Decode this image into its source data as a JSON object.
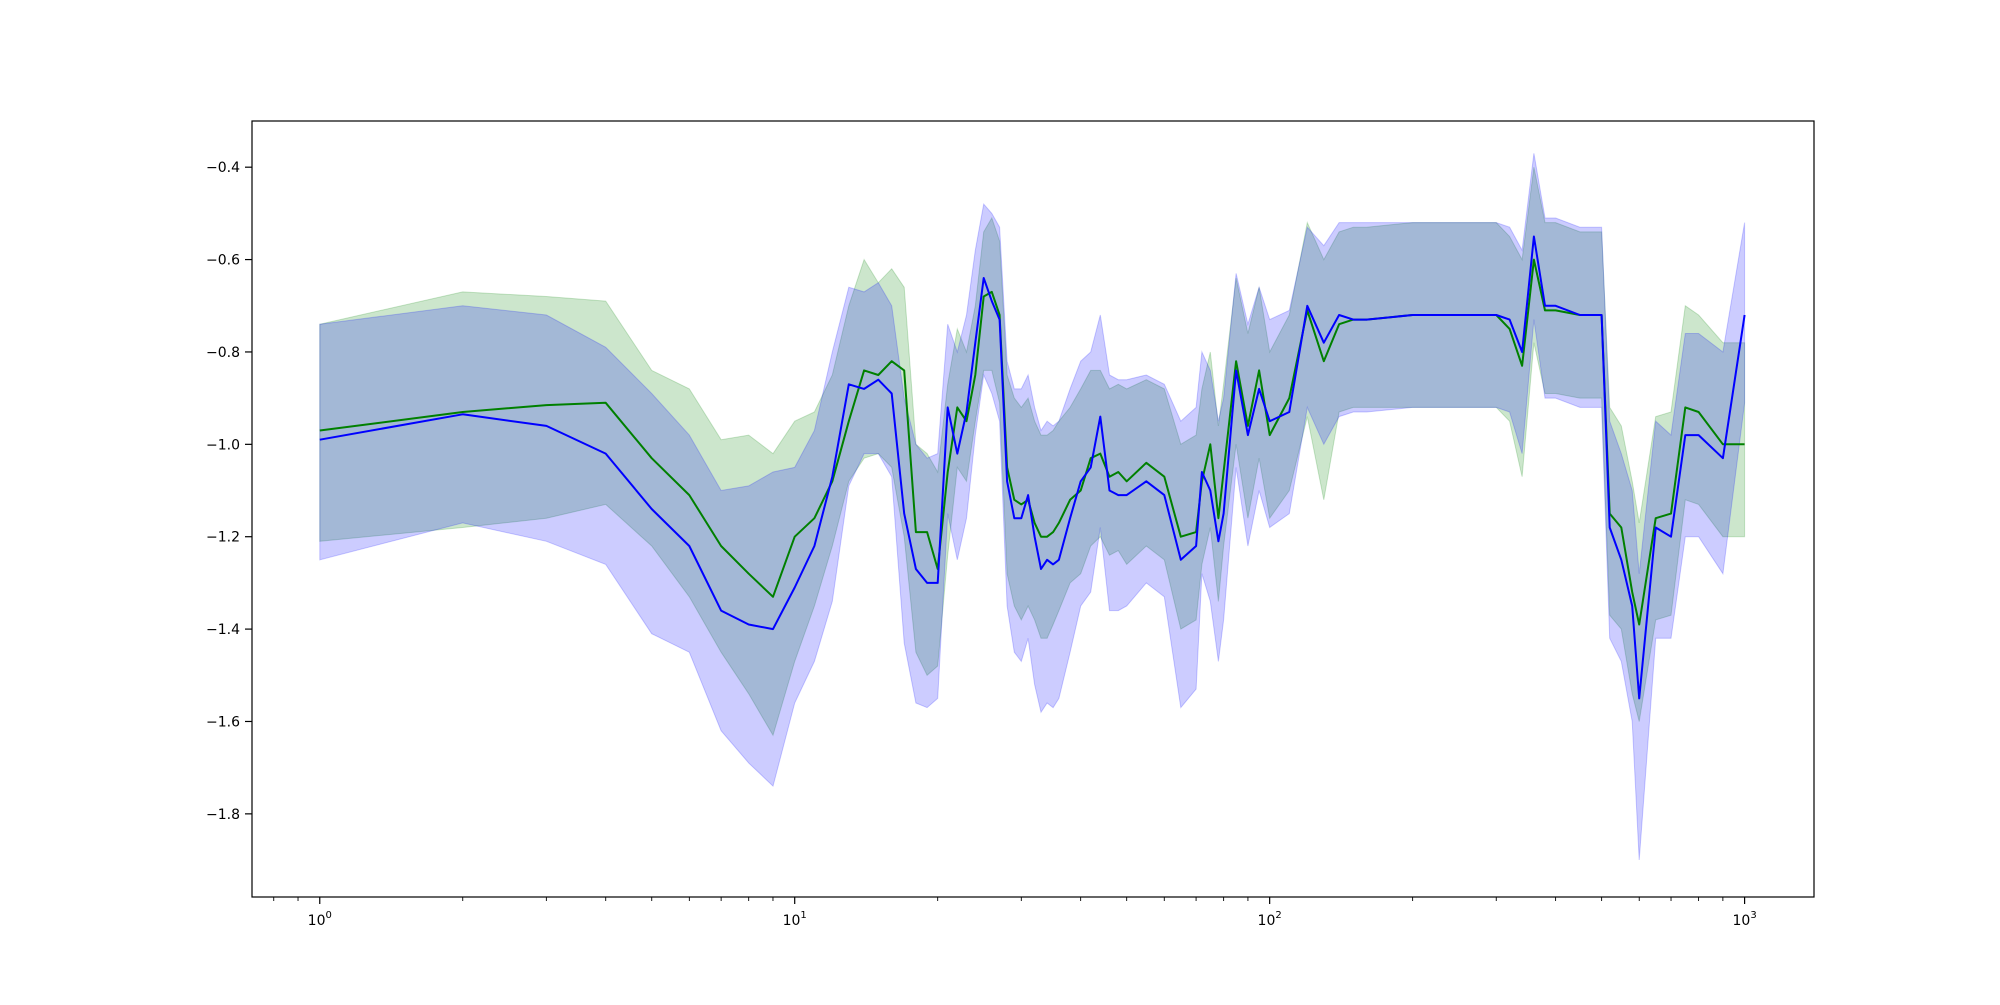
{
  "chart_data": {
    "type": "line",
    "title": "",
    "xlabel": "",
    "ylabel": "",
    "x_scale": "log",
    "xlim": [
      0.72,
      1400
    ],
    "ylim": [
      -1.98,
      -0.3
    ],
    "grid": false,
    "x_ticks": [
      {
        "value": 1,
        "base": "10",
        "exp": "0"
      },
      {
        "value": 10,
        "base": "10",
        "exp": "1"
      },
      {
        "value": 100,
        "base": "10",
        "exp": "2"
      },
      {
        "value": 1000,
        "base": "10",
        "exp": "3"
      }
    ],
    "y_ticks": [
      {
        "value": -0.4,
        "label": "−0.4"
      },
      {
        "value": -0.6,
        "label": "−0.6"
      },
      {
        "value": -0.8,
        "label": "−0.8"
      },
      {
        "value": -1.0,
        "label": "−1.0"
      },
      {
        "value": -1.2,
        "label": "−1.2"
      },
      {
        "value": -1.4,
        "label": "−1.4"
      },
      {
        "value": -1.6,
        "label": "−1.6"
      },
      {
        "value": -1.8,
        "label": "−1.8"
      }
    ],
    "series": [
      {
        "color": "#008000",
        "band_color": "#008000",
        "band_opacity": 0.2,
        "x": [
          1,
          2,
          3,
          4,
          5,
          6,
          7,
          8,
          9,
          10,
          11,
          12,
          13,
          14,
          15,
          16,
          17,
          18,
          19,
          20,
          21,
          22,
          23,
          24,
          25,
          26,
          27,
          28,
          29,
          30,
          31,
          32,
          33,
          34,
          35,
          36,
          38,
          40,
          42,
          44,
          46,
          48,
          50,
          55,
          60,
          65,
          70,
          72,
          75,
          78,
          80,
          85,
          90,
          95,
          100,
          110,
          120,
          130,
          140,
          150,
          160,
          200,
          220,
          240,
          300,
          320,
          340,
          360,
          380,
          400,
          450,
          500,
          520,
          550,
          580,
          600,
          650,
          700,
          750,
          800,
          900,
          1000
        ],
        "y": [
          -0.97,
          -0.93,
          -0.915,
          -0.91,
          -1.03,
          -1.11,
          -1.22,
          -1.28,
          -1.33,
          -1.2,
          -1.16,
          -1.08,
          -0.95,
          -0.84,
          -0.85,
          -0.82,
          -0.84,
          -1.19,
          -1.19,
          -1.27,
          -1.06,
          -0.92,
          -0.95,
          -0.85,
          -0.68,
          -0.67,
          -0.72,
          -1.05,
          -1.12,
          -1.13,
          -1.12,
          -1.17,
          -1.2,
          -1.2,
          -1.19,
          -1.17,
          -1.12,
          -1.1,
          -1.03,
          -1.02,
          -1.07,
          -1.06,
          -1.08,
          -1.04,
          -1.07,
          -1.2,
          -1.19,
          -1.08,
          -1.0,
          -1.16,
          -1.06,
          -0.82,
          -0.96,
          -0.84,
          -0.98,
          -0.9,
          -0.71,
          -0.82,
          -0.74,
          -0.73,
          -0.73,
          -0.72,
          -0.72,
          -0.72,
          -0.72,
          -0.75,
          -0.83,
          -0.6,
          -0.71,
          -0.71,
          -0.72,
          -0.72,
          -1.15,
          -1.18,
          -1.32,
          -1.39,
          -1.16,
          -1.15,
          -0.92,
          -0.93,
          -1.0,
          -1.0
        ],
        "lower": [
          -1.21,
          -1.18,
          -1.16,
          -1.13,
          -1.22,
          -1.33,
          -1.45,
          -1.54,
          -1.63,
          -1.47,
          -1.35,
          -1.22,
          -1.08,
          -1.03,
          -1.02,
          -1.05,
          -1.2,
          -1.45,
          -1.5,
          -1.48,
          -1.24,
          -1.05,
          -1.08,
          -0.95,
          -0.84,
          -0.84,
          -0.91,
          -1.28,
          -1.35,
          -1.38,
          -1.35,
          -1.38,
          -1.42,
          -1.42,
          -1.39,
          -1.36,
          -1.3,
          -1.28,
          -1.22,
          -1.2,
          -1.24,
          -1.23,
          -1.26,
          -1.22,
          -1.25,
          -1.4,
          -1.38,
          -1.26,
          -1.18,
          -1.34,
          -1.22,
          -1.0,
          -1.16,
          -1.03,
          -1.16,
          -1.1,
          -0.94,
          -1.12,
          -0.93,
          -0.92,
          -0.92,
          -0.92,
          -0.92,
          -0.92,
          -0.92,
          -0.95,
          -1.07,
          -0.78,
          -0.89,
          -0.89,
          -0.9,
          -0.9,
          -1.37,
          -1.4,
          -1.54,
          -1.6,
          -1.38,
          -1.37,
          -1.12,
          -1.13,
          -1.2,
          -1.2
        ],
        "upper": [
          -0.74,
          -0.67,
          -0.68,
          -0.69,
          -0.84,
          -0.88,
          -0.99,
          -0.98,
          -1.02,
          -0.95,
          -0.93,
          -0.85,
          -0.7,
          -0.6,
          -0.65,
          -0.62,
          -0.66,
          -1.0,
          -1.02,
          -1.06,
          -0.87,
          -0.75,
          -0.8,
          -0.7,
          -0.54,
          -0.51,
          -0.56,
          -0.85,
          -0.9,
          -0.92,
          -0.9,
          -0.95,
          -0.98,
          -0.98,
          -0.97,
          -0.95,
          -0.92,
          -0.88,
          -0.84,
          -0.84,
          -0.88,
          -0.87,
          -0.88,
          -0.86,
          -0.88,
          -1.0,
          -0.98,
          -0.88,
          -0.8,
          -0.96,
          -0.87,
          -0.64,
          -0.76,
          -0.66,
          -0.8,
          -0.72,
          -0.52,
          -0.6,
          -0.54,
          -0.53,
          -0.53,
          -0.52,
          -0.52,
          -0.52,
          -0.52,
          -0.55,
          -0.6,
          -0.4,
          -0.52,
          -0.52,
          -0.54,
          -0.54,
          -0.92,
          -0.96,
          -1.08,
          -1.17,
          -0.94,
          -0.93,
          -0.7,
          -0.72,
          -0.78,
          -0.78
        ]
      },
      {
        "color": "#0000ff",
        "band_color": "#0000ff",
        "band_opacity": 0.2,
        "x": [
          1,
          2,
          3,
          4,
          5,
          6,
          7,
          8,
          9,
          10,
          11,
          12,
          13,
          14,
          15,
          16,
          17,
          18,
          19,
          20,
          21,
          22,
          23,
          24,
          25,
          26,
          27,
          28,
          29,
          30,
          31,
          32,
          33,
          34,
          35,
          36,
          38,
          40,
          42,
          44,
          46,
          48,
          50,
          55,
          60,
          65,
          70,
          72,
          75,
          78,
          80,
          85,
          90,
          95,
          100,
          110,
          120,
          130,
          140,
          150,
          160,
          200,
          220,
          240,
          300,
          320,
          340,
          360,
          380,
          400,
          450,
          500,
          520,
          550,
          580,
          600,
          650,
          700,
          750,
          800,
          900,
          1000
        ],
        "y": [
          -0.99,
          -0.935,
          -0.96,
          -1.02,
          -1.14,
          -1.22,
          -1.36,
          -1.39,
          -1.4,
          -1.31,
          -1.22,
          -1.07,
          -0.87,
          -0.88,
          -0.86,
          -0.89,
          -1.15,
          -1.27,
          -1.3,
          -1.3,
          -0.92,
          -1.02,
          -0.93,
          -0.78,
          -0.64,
          -0.69,
          -0.73,
          -1.08,
          -1.16,
          -1.16,
          -1.11,
          -1.2,
          -1.27,
          -1.25,
          -1.26,
          -1.25,
          -1.16,
          -1.08,
          -1.05,
          -0.94,
          -1.1,
          -1.11,
          -1.11,
          -1.08,
          -1.11,
          -1.25,
          -1.22,
          -1.06,
          -1.1,
          -1.21,
          -1.15,
          -0.84,
          -0.98,
          -0.88,
          -0.95,
          -0.93,
          -0.7,
          -0.78,
          -0.72,
          -0.73,
          -0.73,
          -0.72,
          -0.72,
          -0.72,
          -0.72,
          -0.73,
          -0.8,
          -0.55,
          -0.7,
          -0.7,
          -0.72,
          -0.72,
          -1.18,
          -1.25,
          -1.35,
          -1.55,
          -1.18,
          -1.2,
          -0.98,
          -0.98,
          -1.03,
          -0.72
        ],
        "lower": [
          -1.25,
          -1.17,
          -1.21,
          -1.26,
          -1.41,
          -1.45,
          -1.62,
          -1.69,
          -1.74,
          -1.56,
          -1.47,
          -1.34,
          -1.09,
          -1.02,
          -1.02,
          -1.07,
          -1.43,
          -1.56,
          -1.57,
          -1.55,
          -1.15,
          -1.25,
          -1.16,
          -0.98,
          -0.85,
          -0.89,
          -0.95,
          -1.35,
          -1.45,
          -1.47,
          -1.42,
          -1.52,
          -1.58,
          -1.56,
          -1.57,
          -1.55,
          -1.45,
          -1.35,
          -1.32,
          -1.18,
          -1.36,
          -1.36,
          -1.35,
          -1.3,
          -1.33,
          -1.57,
          -1.53,
          -1.28,
          -1.34,
          -1.47,
          -1.38,
          -1.05,
          -1.22,
          -1.1,
          -1.18,
          -1.15,
          -0.92,
          -1.0,
          -0.94,
          -0.93,
          -0.93,
          -0.92,
          -0.92,
          -0.92,
          -0.92,
          -0.93,
          -1.02,
          -0.73,
          -0.9,
          -0.9,
          -0.92,
          -0.92,
          -1.42,
          -1.47,
          -1.6,
          -1.9,
          -1.42,
          -1.42,
          -1.2,
          -1.2,
          -1.28,
          -0.91
        ],
        "upper": [
          -0.74,
          -0.7,
          -0.72,
          -0.79,
          -0.89,
          -0.98,
          -1.1,
          -1.09,
          -1.06,
          -1.05,
          -0.97,
          -0.8,
          -0.66,
          -0.67,
          -0.65,
          -0.7,
          -0.9,
          -1.0,
          -1.03,
          -1.02,
          -0.74,
          -0.8,
          -0.72,
          -0.58,
          -0.48,
          -0.5,
          -0.53,
          -0.82,
          -0.88,
          -0.88,
          -0.85,
          -0.92,
          -0.97,
          -0.95,
          -0.96,
          -0.95,
          -0.88,
          -0.82,
          -0.8,
          -0.72,
          -0.85,
          -0.86,
          -0.86,
          -0.85,
          -0.87,
          -0.95,
          -0.92,
          -0.8,
          -0.84,
          -0.95,
          -0.9,
          -0.63,
          -0.74,
          -0.66,
          -0.73,
          -0.71,
          -0.53,
          -0.57,
          -0.52,
          -0.52,
          -0.52,
          -0.52,
          -0.52,
          -0.52,
          -0.52,
          -0.53,
          -0.58,
          -0.37,
          -0.51,
          -0.51,
          -0.53,
          -0.53,
          -0.95,
          -1.02,
          -1.1,
          -1.28,
          -0.95,
          -0.98,
          -0.76,
          -0.76,
          -0.8,
          -0.52
        ]
      }
    ]
  }
}
